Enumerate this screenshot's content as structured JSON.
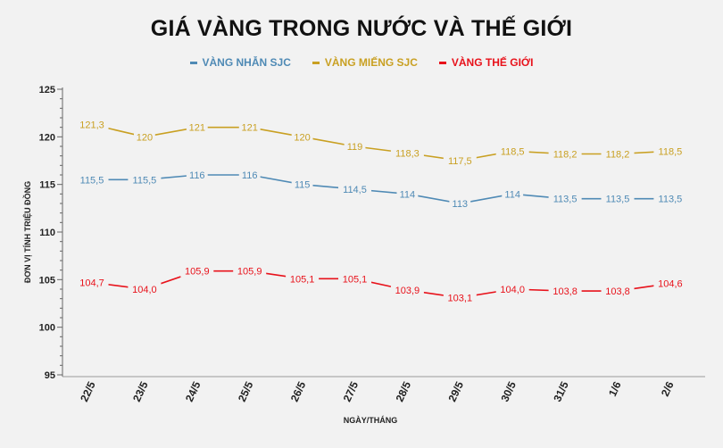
{
  "chart_data": {
    "type": "line",
    "title": "GIÁ VÀNG TRONG NƯỚC VÀ THẾ GIỚI",
    "xlabel": "NGÀY/THÁNG",
    "ylabel": "ĐƠN VỊ TÍNH TRIỆU ĐỒNG",
    "ylim": [
      95,
      125
    ],
    "yticks": [
      "125",
      "120",
      "115",
      "110",
      "105",
      "100",
      "95"
    ],
    "categories": [
      "22/5",
      "23/5",
      "24/5",
      "25/5",
      "26/5",
      "27/5",
      "28/5",
      "29/5",
      "30/5",
      "31/5",
      "1/6",
      "2/6"
    ],
    "legend_position": "top",
    "grid": false,
    "series": [
      {
        "name": "VÀNG NHẪN SJC",
        "color": "#4f8ab5",
        "values": [
          115.5,
          115.5,
          116,
          116,
          115,
          114.5,
          114,
          113,
          114,
          113.5,
          113.5,
          113.5
        ],
        "labels": [
          "115,5",
          "115,5",
          "116",
          "116",
          "115",
          "114,5",
          "114",
          "113",
          "114",
          "113,5",
          "113,5",
          "113,5"
        ]
      },
      {
        "name": "VÀNG MIẾNG SJC",
        "color": "#c9a022",
        "values": [
          121.3,
          120,
          121,
          121,
          120,
          119,
          118.3,
          117.5,
          118.5,
          118.2,
          118.2,
          118.5
        ],
        "labels": [
          "121,3",
          "120",
          "121",
          "121",
          "120",
          "119",
          "118,3",
          "117,5",
          "118,5",
          "118,2",
          "118,2",
          "118,5"
        ]
      },
      {
        "name": "VÀNG THẾ GIỚI",
        "color": "#e8121b",
        "values": [
          104.7,
          104.0,
          105.9,
          105.9,
          105.1,
          105.1,
          103.9,
          103.1,
          104.0,
          103.8,
          103.8,
          104.6
        ],
        "labels": [
          "104,7",
          "104,0",
          "105,9",
          "105,9",
          "105,1",
          "105,1",
          "103,9",
          "103,1",
          "104,0",
          "103,8",
          "103,8",
          "104,6"
        ]
      }
    ]
  }
}
